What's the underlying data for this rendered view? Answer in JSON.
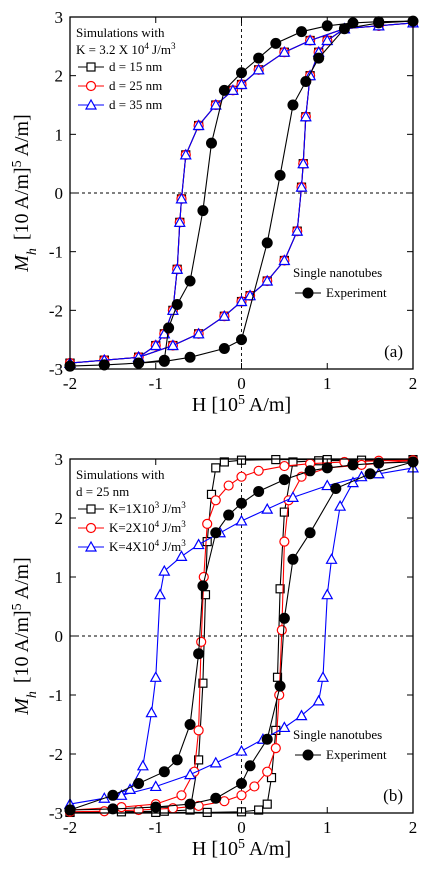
{
  "chart_data": [
    {
      "type": "line",
      "panel_label": "(a)",
      "xlabel": "H [10^5 A/m]",
      "ylabel": "M_h [10^5 A/m]",
      "xlim": [
        -2,
        2
      ],
      "ylim": [
        -3,
        3
      ],
      "xticks": [
        "-2",
        "-1",
        "0",
        "1",
        "2"
      ],
      "yticks": [
        "3",
        "2",
        "1",
        "0",
        "-1",
        "-2",
        "-3"
      ],
      "grid": false,
      "legend_title": [
        "Simulations with",
        "K = 3.2 X 10^4 J/m^3"
      ],
      "series": [
        {
          "name": "d = 15 nm",
          "color": "#000000",
          "marker": "square",
          "x": [
            -2.0,
            -1.6,
            -1.2,
            -1.0,
            -0.9,
            -0.8,
            -0.75,
            -0.72,
            -0.7,
            -0.65,
            -0.5,
            -0.3,
            -0.1,
            0.0,
            0.2,
            0.5,
            0.8,
            1.2,
            1.6,
            2.0,
            1.6,
            1.2,
            1.0,
            0.9,
            0.8,
            0.75,
            0.72,
            0.7,
            0.65,
            0.5,
            0.3,
            0.1,
            0.0,
            -0.2,
            -0.5,
            -0.8,
            -1.2,
            -1.6,
            -2.0
          ],
          "y": [
            -2.9,
            -2.85,
            -2.8,
            -2.6,
            -2.4,
            -2.0,
            -1.3,
            -0.5,
            -0.1,
            0.65,
            1.15,
            1.5,
            1.75,
            1.85,
            2.1,
            2.4,
            2.6,
            2.8,
            2.85,
            2.9,
            2.85,
            2.8,
            2.6,
            2.4,
            2.0,
            1.3,
            0.5,
            0.1,
            -0.65,
            -1.15,
            -1.5,
            -1.75,
            -1.85,
            -2.1,
            -2.4,
            -2.6,
            -2.8,
            -2.85,
            -2.9
          ]
        },
        {
          "name": "d = 25 nm",
          "color": "#ff0000",
          "marker": "circle",
          "x": [
            -2.0,
            -1.6,
            -1.2,
            -1.0,
            -0.9,
            -0.8,
            -0.75,
            -0.72,
            -0.7,
            -0.65,
            -0.5,
            -0.3,
            -0.1,
            0.0,
            0.2,
            0.5,
            0.8,
            1.2,
            1.6,
            2.0,
            1.6,
            1.2,
            1.0,
            0.9,
            0.8,
            0.75,
            0.72,
            0.7,
            0.65,
            0.5,
            0.3,
            0.1,
            0.0,
            -0.2,
            -0.5,
            -0.8,
            -1.2,
            -1.6,
            -2.0
          ],
          "y": [
            -2.9,
            -2.85,
            -2.8,
            -2.6,
            -2.4,
            -2.0,
            -1.3,
            -0.5,
            -0.1,
            0.65,
            1.15,
            1.5,
            1.75,
            1.85,
            2.1,
            2.4,
            2.6,
            2.8,
            2.85,
            2.9,
            2.85,
            2.8,
            2.6,
            2.4,
            2.0,
            1.3,
            0.5,
            0.1,
            -0.65,
            -1.15,
            -1.5,
            -1.75,
            -1.85,
            -2.1,
            -2.4,
            -2.6,
            -2.8,
            -2.85,
            -2.9
          ]
        },
        {
          "name": "d = 35 nm",
          "color": "#0000ff",
          "marker": "triangle",
          "x": [
            -2.0,
            -1.6,
            -1.2,
            -1.0,
            -0.9,
            -0.8,
            -0.75,
            -0.72,
            -0.7,
            -0.65,
            -0.5,
            -0.3,
            -0.1,
            0.0,
            0.2,
            0.5,
            0.8,
            1.2,
            1.6,
            2.0,
            1.6,
            1.2,
            1.0,
            0.9,
            0.8,
            0.75,
            0.72,
            0.7,
            0.65,
            0.5,
            0.3,
            0.1,
            0.0,
            -0.2,
            -0.5,
            -0.8,
            -1.2,
            -1.6,
            -2.0
          ],
          "y": [
            -2.9,
            -2.85,
            -2.8,
            -2.6,
            -2.4,
            -2.0,
            -1.3,
            -0.5,
            -0.1,
            0.65,
            1.15,
            1.5,
            1.75,
            1.85,
            2.1,
            2.4,
            2.6,
            2.8,
            2.85,
            2.9,
            2.85,
            2.8,
            2.6,
            2.4,
            2.0,
            1.3,
            0.5,
            0.1,
            -0.65,
            -1.15,
            -1.5,
            -1.75,
            -1.85,
            -2.1,
            -2.4,
            -2.6,
            -2.8,
            -2.85,
            -2.9
          ]
        }
      ],
      "experiment": {
        "name": "Experiment",
        "title": "Single nanotubes",
        "color": "#000000",
        "marker": "filled-circle",
        "x": [
          -2.0,
          -1.6,
          -1.2,
          -0.9,
          -0.85,
          -0.75,
          -0.6,
          -0.45,
          -0.35,
          -0.2,
          0.0,
          0.2,
          0.4,
          0.7,
          1.0,
          1.3,
          1.6,
          2.0,
          1.6,
          1.2,
          0.9,
          0.75,
          0.6,
          0.45,
          0.3,
          0.0,
          -0.2,
          -0.6,
          -0.9,
          -1.2,
          -1.6,
          -2.0
        ],
        "y": [
          -2.95,
          -2.93,
          -2.9,
          -2.85,
          -2.3,
          -1.9,
          -1.5,
          -0.3,
          0.85,
          1.75,
          2.05,
          2.3,
          2.55,
          2.75,
          2.85,
          2.9,
          2.92,
          2.93,
          2.9,
          2.8,
          2.3,
          1.9,
          1.5,
          0.3,
          -0.85,
          -2.5,
          -2.65,
          -2.8,
          -2.87,
          -2.9,
          -2.93,
          -2.95
        ]
      }
    },
    {
      "type": "line",
      "panel_label": "(b)",
      "xlabel": "H [10^5 A/m]",
      "ylabel": "M_h [10^5 A/m]",
      "xlim": [
        -2,
        2
      ],
      "ylim": [
        -3,
        3
      ],
      "xticks": [
        "-2",
        "-1",
        "0",
        "1",
        "2"
      ],
      "yticks": [
        "3",
        "2",
        "1",
        "0",
        "-1",
        "-2",
        "-3"
      ],
      "grid": false,
      "legend_title": [
        "Simulations with",
        "d = 25 nm"
      ],
      "series": [
        {
          "name": "K=1X10^3 J/m^3",
          "color": "#000000",
          "marker": "square",
          "x": [
            -2.0,
            -1.4,
            -0.9,
            -0.6,
            -0.5,
            -0.45,
            -0.42,
            -0.4,
            -0.35,
            -0.3,
            -0.2,
            0.0,
            0.4,
            1.0,
            2.0,
            1.4,
            0.9,
            0.6,
            0.5,
            0.45,
            0.42,
            0.4,
            0.35,
            0.3,
            0.2,
            0.0,
            -0.4,
            -1.0,
            -2.0
          ],
          "y": [
            -2.99,
            -2.98,
            -2.97,
            -2.95,
            -2.1,
            -0.8,
            0.7,
            1.6,
            2.4,
            2.85,
            2.95,
            2.98,
            2.99,
            2.99,
            2.99,
            2.98,
            2.97,
            2.95,
            2.1,
            0.8,
            -0.7,
            -1.6,
            -2.4,
            -2.85,
            -2.95,
            -2.98,
            -2.99,
            -2.99,
            -2.99
          ]
        },
        {
          "name": "K=2X10^4 J/m^3",
          "color": "#ff0000",
          "marker": "circle",
          "x": [
            -2.0,
            -1.4,
            -1.0,
            -0.7,
            -0.55,
            -0.5,
            -0.47,
            -0.44,
            -0.4,
            -0.3,
            -0.15,
            0.0,
            0.2,
            0.5,
            0.8,
            1.2,
            1.6,
            2.0,
            1.4,
            1.0,
            0.7,
            0.55,
            0.5,
            0.47,
            0.44,
            0.4,
            0.3,
            0.15,
            0.0,
            -0.2,
            -0.5,
            -0.8,
            -1.2,
            -1.6,
            -2.0
          ],
          "y": [
            -2.95,
            -2.9,
            -2.85,
            -2.7,
            -2.3,
            -1.6,
            -0.1,
            1.0,
            1.9,
            2.3,
            2.55,
            2.7,
            2.8,
            2.88,
            2.92,
            2.95,
            2.97,
            2.98,
            2.9,
            2.85,
            2.7,
            2.3,
            1.6,
            0.1,
            -1.0,
            -1.9,
            -2.3,
            -2.55,
            -2.7,
            -2.8,
            -2.88,
            -2.92,
            -2.95,
            -2.97,
            -2.98
          ]
        },
        {
          "name": "K=4X10^4 J/m^3",
          "color": "#0000ff",
          "marker": "triangle",
          "x": [
            -2.0,
            -1.6,
            -1.3,
            -1.15,
            -1.05,
            -1.0,
            -0.95,
            -0.9,
            -0.7,
            -0.5,
            -0.25,
            0.0,
            0.3,
            0.6,
            1.0,
            1.4,
            2.0,
            1.6,
            1.3,
            1.15,
            1.05,
            1.0,
            0.95,
            0.9,
            0.7,
            0.5,
            0.25,
            0.0,
            -0.3,
            -0.6,
            -1.0,
            -1.4,
            -2.0
          ],
          "y": [
            -2.85,
            -2.75,
            -2.6,
            -2.2,
            -1.3,
            -0.7,
            0.7,
            1.1,
            1.35,
            1.55,
            1.75,
            1.95,
            2.15,
            2.35,
            2.55,
            2.7,
            2.85,
            2.75,
            2.6,
            2.2,
            1.3,
            0.7,
            -0.7,
            -1.1,
            -1.35,
            -1.55,
            -1.75,
            -1.95,
            -2.15,
            -2.35,
            -2.55,
            -2.7,
            -2.85
          ]
        }
      ],
      "experiment": {
        "name": "Experiment",
        "title": "Single nanotubes",
        "color": "#000000",
        "marker": "filled-circle",
        "x": [
          -2.0,
          -1.5,
          -1.2,
          -0.9,
          -0.75,
          -0.6,
          -0.5,
          -0.45,
          -0.3,
          -0.15,
          0.0,
          0.2,
          0.5,
          0.8,
          1.0,
          1.3,
          1.6,
          2.0,
          1.5,
          1.1,
          0.8,
          0.6,
          0.5,
          0.45,
          0.3,
          0.1,
          0.0,
          -0.3,
          -0.6,
          -1.0,
          -1.5,
          -2.0
        ],
        "y": [
          -2.95,
          -2.7,
          -2.5,
          -2.3,
          -2.1,
          -1.5,
          -0.3,
          0.85,
          1.75,
          2.05,
          2.25,
          2.45,
          2.65,
          2.8,
          2.85,
          2.9,
          2.93,
          2.95,
          2.75,
          2.5,
          1.75,
          1.3,
          0.3,
          -0.85,
          -1.75,
          -2.2,
          -2.5,
          -2.75,
          -2.85,
          -2.9,
          -2.93,
          -2.95
        ]
      }
    }
  ]
}
